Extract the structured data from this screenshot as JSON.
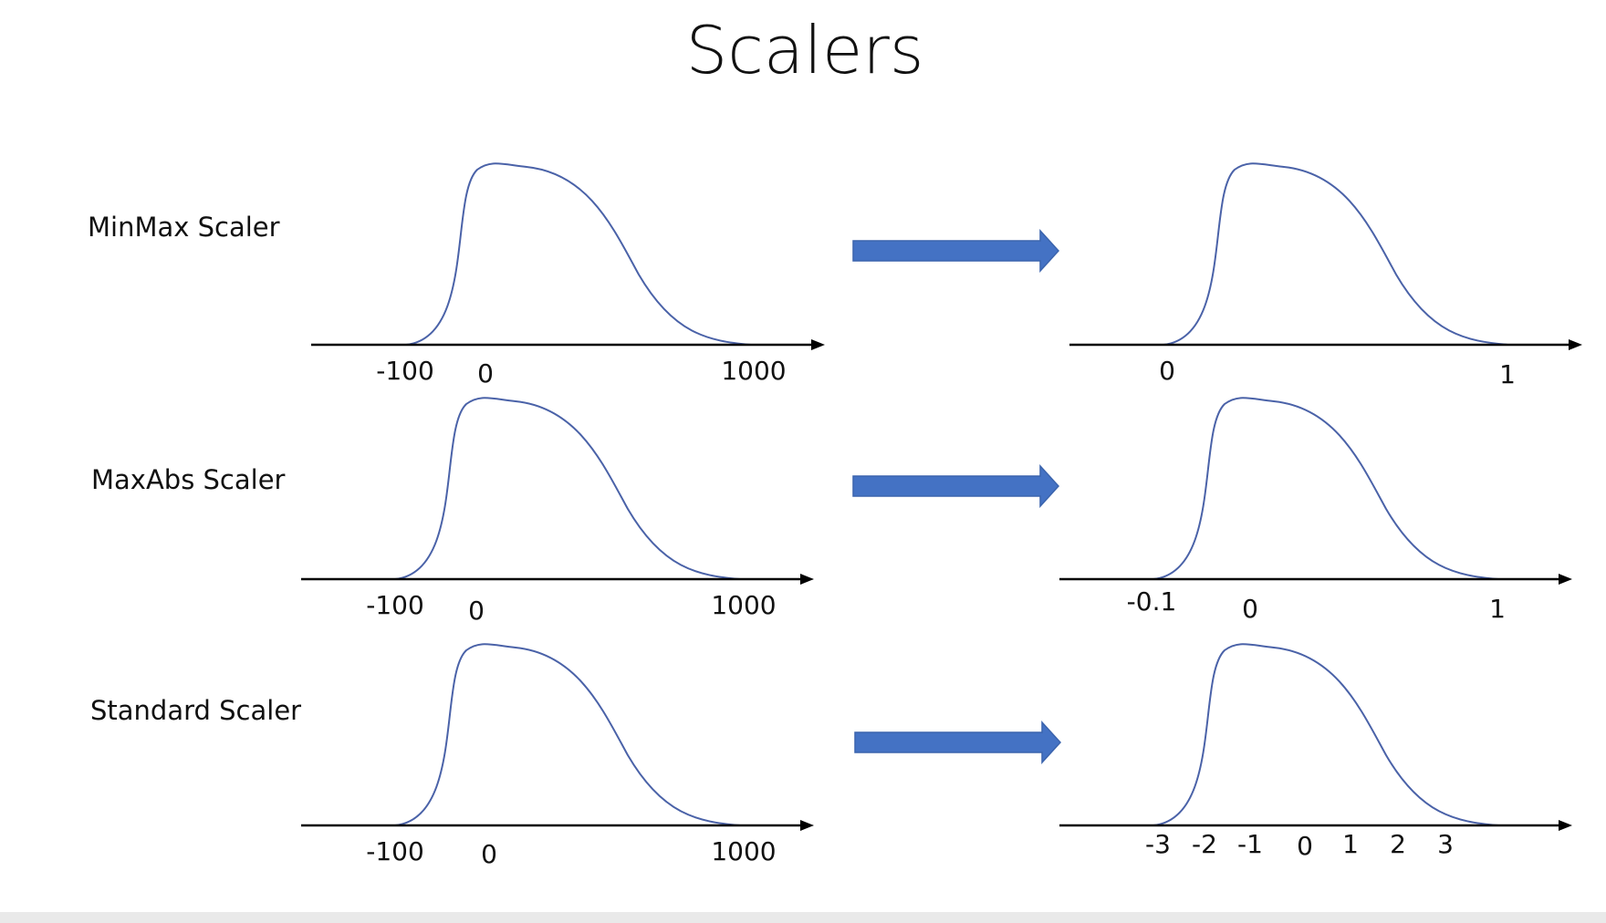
{
  "slide": {
    "title": "Scalers"
  },
  "rows": [
    {
      "label": "MinMax Scaler",
      "before_ticks": [
        "-100",
        "0",
        "1000"
      ],
      "after_ticks": [
        "0",
        "1"
      ]
    },
    {
      "label": "MaxAbs Scaler",
      "before_ticks": [
        "-100",
        "0",
        "1000"
      ],
      "after_ticks": [
        "-0.1",
        "0",
        "1"
      ]
    },
    {
      "label": "Standard Scaler",
      "before_ticks": [
        "-100",
        "0",
        "1000"
      ],
      "after_ticks": [
        "-3",
        "-2",
        "-1",
        "0",
        "1",
        "2",
        "3"
      ]
    }
  ],
  "colors": {
    "curve": "#4a62a8",
    "arrow": "#4472c4",
    "axis": "#000000"
  }
}
